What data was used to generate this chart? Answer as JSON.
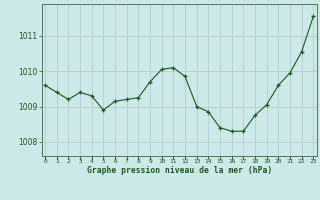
{
  "x": [
    0,
    1,
    2,
    3,
    4,
    5,
    6,
    7,
    8,
    9,
    10,
    11,
    12,
    13,
    14,
    15,
    16,
    17,
    18,
    19,
    20,
    21,
    22,
    23
  ],
  "y": [
    1009.6,
    1009.4,
    1009.2,
    1009.4,
    1009.3,
    1008.9,
    1009.15,
    1009.2,
    1009.25,
    1009.7,
    1010.05,
    1010.1,
    1009.85,
    1009.0,
    1008.85,
    1008.4,
    1008.3,
    1008.3,
    1008.75,
    1009.05,
    1009.6,
    1009.95,
    1010.55,
    1011.55
  ],
  "line_color": "#1a5c1a",
  "marker_color": "#1a5c1a",
  "bg_color": "#cce8e8",
  "grid_color": "#b0c8c8",
  "title": "Graphe pression niveau de la mer (hPa)",
  "xlabel_ticks": [
    "0",
    "1",
    "2",
    "3",
    "4",
    "5",
    "6",
    "7",
    "8",
    "9",
    "10",
    "11",
    "12",
    "13",
    "14",
    "15",
    "16",
    "17",
    "18",
    "19",
    "20",
    "21",
    "22",
    "23"
  ],
  "yticks": [
    1008,
    1009,
    1010,
    1011
  ],
  "ylim": [
    1007.6,
    1011.9
  ],
  "xlim": [
    -0.3,
    23.3
  ],
  "spine_color": "#557755"
}
